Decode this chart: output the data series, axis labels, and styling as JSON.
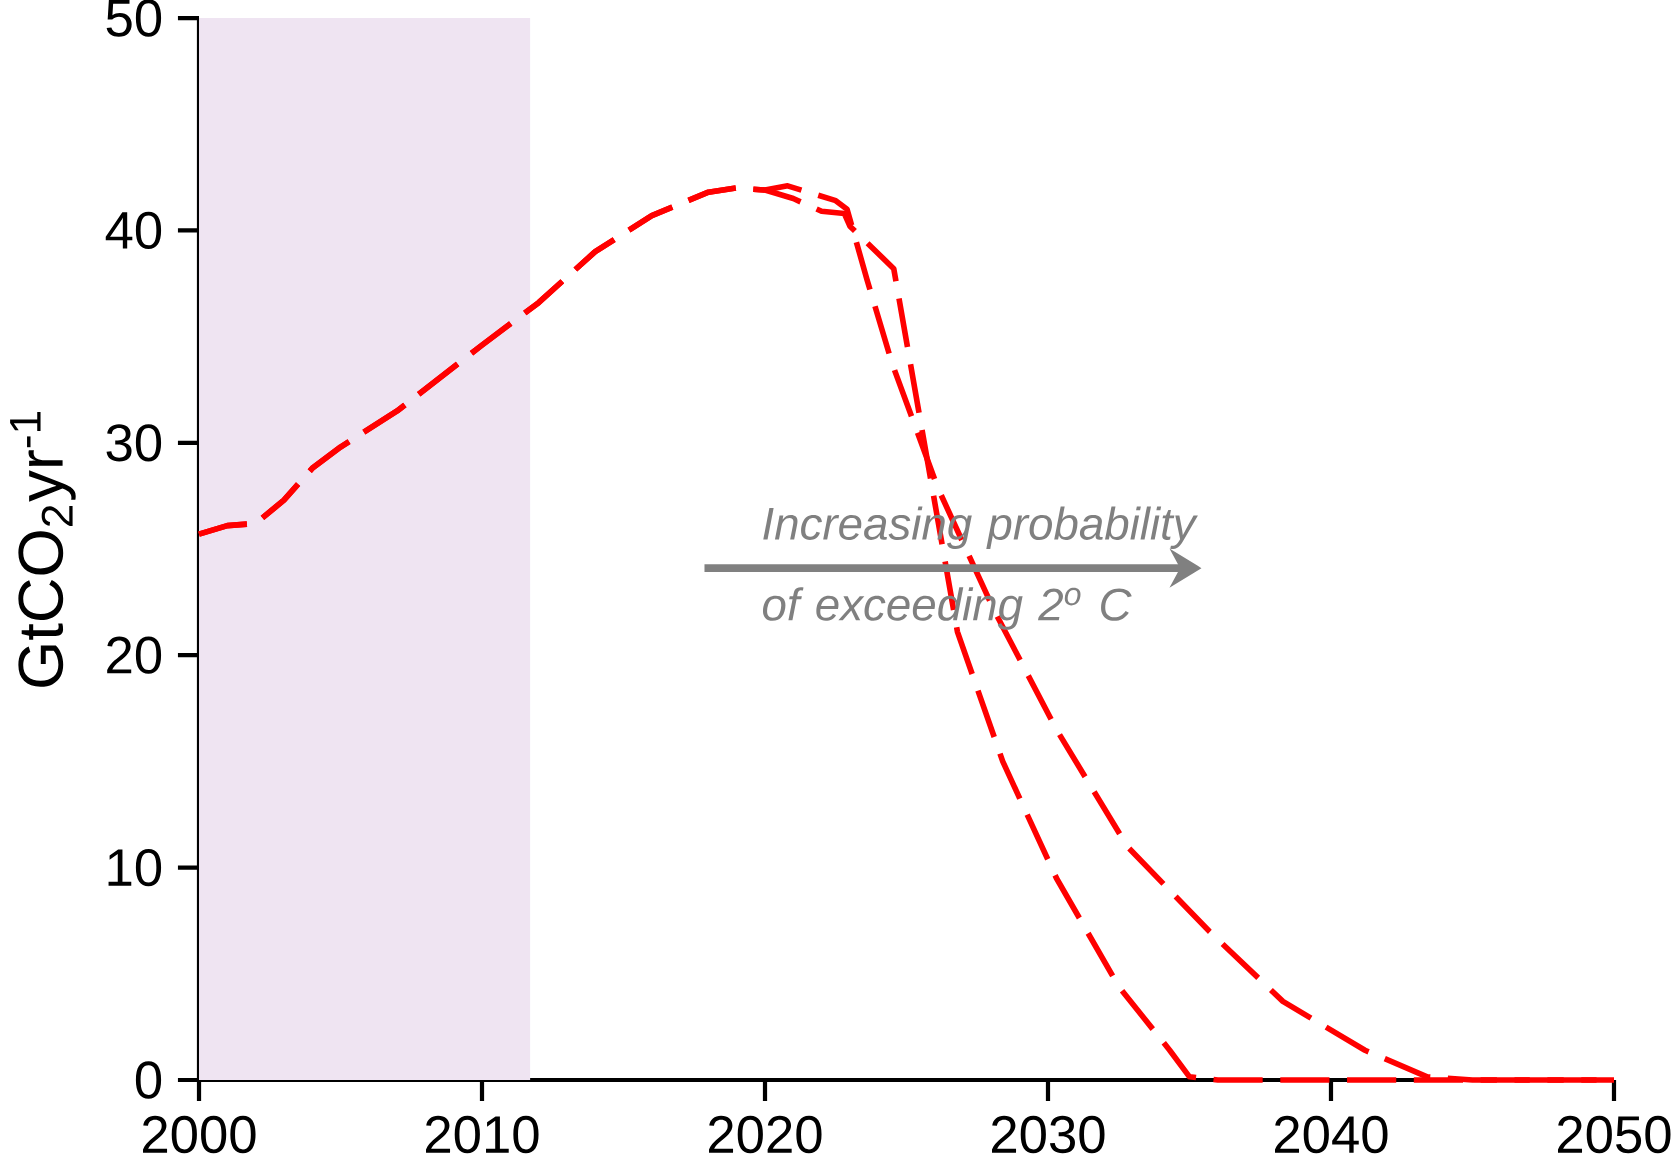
{
  "chart_data": {
    "type": "line",
    "ylabel": "GtCO$_{2}$yr$^{-1}$",
    "xlim": [
      2000,
      2050
    ],
    "ylim": [
      0,
      50
    ],
    "xticks": [
      2000,
      2010,
      2020,
      2030,
      2040,
      2050
    ],
    "yticks": [
      0,
      10,
      20,
      30,
      40,
      50
    ],
    "line_style": "dashed",
    "series": [
      {
        "color": "#ff0000",
        "x": [
          2000,
          2001,
          2002,
          2003,
          2004,
          2005,
          2007,
          2010,
          2012,
          2014,
          2016,
          2018,
          2019,
          2020,
          2021,
          2022,
          2022.8,
          2023,
          2024.55,
          2026.8,
          2028.4,
          2030.3,
          2032.5,
          2034.3,
          2035,
          2036,
          2050
        ],
        "values": [
          25.7,
          26.1,
          26.2,
          27.3,
          28.8,
          29.8,
          31.5,
          34.6,
          36.6,
          39.0,
          40.7,
          41.8,
          42.0,
          41.9,
          41.5,
          40.9,
          40.8,
          40.2,
          38.2,
          21.1,
          15.0,
          9.5,
          4.4,
          1.4,
          0.15,
          0,
          0
        ]
      },
      {
        "color": "#ff0000",
        "x": [
          2000,
          2001,
          2002,
          2003,
          2004,
          2005,
          2007,
          2010,
          2012,
          2014,
          2016,
          2018,
          2019,
          2020,
          2020.8,
          2022.5,
          2022.9,
          2023.6,
          2024.5,
          2026.1,
          2028.1,
          2030.3,
          2032.8,
          2035.7,
          2038.3,
          2041.2,
          2043.4,
          2045,
          2050
        ],
        "values": [
          25.7,
          26.1,
          26.2,
          27.3,
          28.8,
          29.8,
          31.5,
          34.6,
          36.6,
          39.0,
          40.7,
          41.8,
          42.0,
          41.9,
          42.1,
          41.4,
          41.0,
          37.7,
          33.7,
          27.9,
          22.1,
          16.5,
          11.0,
          7.0,
          3.7,
          1.4,
          0.15,
          0,
          0
        ]
      }
    ],
    "bands": [
      {
        "axis": "x",
        "from": 2000,
        "to": 2011.7,
        "color": "#efe4f2"
      }
    ],
    "annotations": [
      "Increasing probability of exceeding 2$^{o}$ C"
    ]
  }
}
